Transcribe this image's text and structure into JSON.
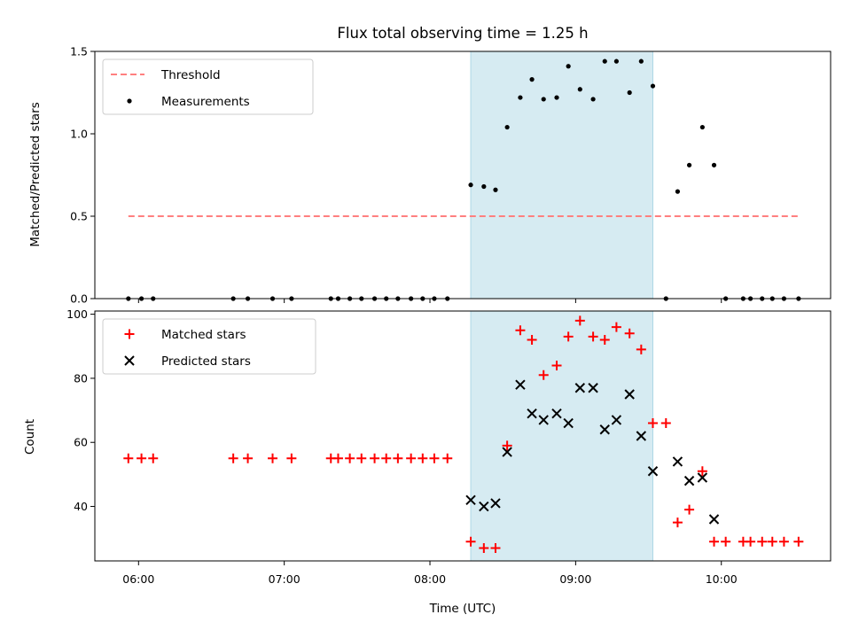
{
  "chart_data": [
    {
      "type": "scatter",
      "title": "Flux total observing time = 1.25 h",
      "ylabel": "Matched/Predicted stars",
      "xlim": [
        5.7,
        10.75
      ],
      "ylim": [
        0,
        1.5
      ],
      "yticks": [
        0,
        0.5,
        1.0,
        1.5
      ],
      "ytick_labels": [
        "0.0",
        "0.5",
        "1.0",
        "1.5"
      ],
      "xticks": [
        6,
        7,
        8,
        9,
        10
      ],
      "shaded_region": {
        "x": [
          8.28,
          9.53
        ],
        "color": "#add8e6"
      },
      "legend": {
        "position": "upper left",
        "entries": [
          "Threshold",
          "Measurements"
        ]
      },
      "series": [
        {
          "name": "Threshold",
          "kind": "dashed-line",
          "color": "#ff7f7f",
          "x": [
            5.93,
            10.53
          ],
          "y": [
            0.5,
            0.5
          ]
        },
        {
          "name": "Measurements",
          "kind": "dot",
          "color": "#000000",
          "x": [
            5.93,
            6.02,
            6.1,
            6.65,
            6.75,
            6.92,
            7.05,
            7.32,
            7.37,
            7.45,
            7.53,
            7.62,
            7.7,
            7.78,
            7.87,
            7.95,
            8.03,
            8.12,
            8.28,
            8.37,
            8.45,
            8.53,
            8.62,
            8.7,
            8.78,
            8.87,
            8.95,
            9.03,
            9.12,
            9.2,
            9.28,
            9.37,
            9.45,
            9.53,
            9.62,
            9.7,
            9.78,
            9.87,
            9.95,
            10.03,
            10.15,
            10.2,
            10.28,
            10.35,
            10.43,
            10.53
          ],
          "y": [
            0,
            0,
            0,
            0,
            0,
            0,
            0,
            0,
            0,
            0,
            0,
            0,
            0,
            0,
            0,
            0,
            0,
            0,
            0.69,
            0.68,
            0.66,
            1.04,
            1.22,
            1.33,
            1.21,
            1.22,
            1.41,
            1.27,
            1.21,
            1.44,
            1.44,
            1.25,
            1.44,
            1.29,
            0,
            0.65,
            0.81,
            1.04,
            0.81,
            0,
            0,
            0,
            0,
            0,
            0,
            0
          ]
        }
      ]
    },
    {
      "type": "scatter",
      "xlabel": "Time (UTC)",
      "ylabel": "Count",
      "xlim": [
        5.7,
        10.75
      ],
      "ylim": [
        23,
        101
      ],
      "yticks": [
        40,
        60,
        80,
        100
      ],
      "xticks": [
        6,
        7,
        8,
        9,
        10
      ],
      "xtick_labels": [
        "06:00",
        "07:00",
        "08:00",
        "09:00",
        "10:00"
      ],
      "shaded_region": {
        "x": [
          8.28,
          9.53
        ],
        "color": "#add8e6"
      },
      "legend": {
        "position": "upper left",
        "entries": [
          "Matched stars",
          "Predicted stars"
        ]
      },
      "series": [
        {
          "name": "Matched stars",
          "marker": "plus",
          "color": "#ff0000",
          "x": [
            5.93,
            6.02,
            6.1,
            6.65,
            6.75,
            6.92,
            7.05,
            7.32,
            7.37,
            7.45,
            7.53,
            7.62,
            7.7,
            7.78,
            7.87,
            7.95,
            8.03,
            8.12,
            8.28,
            8.37,
            8.45,
            8.53,
            8.62,
            8.7,
            8.78,
            8.87,
            8.95,
            9.03,
            9.12,
            9.2,
            9.28,
            9.37,
            9.45,
            9.53,
            9.62,
            9.7,
            9.78,
            9.87,
            9.95,
            10.03,
            10.15,
            10.2,
            10.28,
            10.35,
            10.43,
            10.53
          ],
          "y": [
            55,
            55,
            55,
            55,
            55,
            55,
            55,
            55,
            55,
            55,
            55,
            55,
            55,
            55,
            55,
            55,
            55,
            55,
            29,
            27,
            27,
            59,
            95,
            92,
            81,
            84,
            93,
            98,
            93,
            92,
            96,
            94,
            89,
            66,
            66,
            35,
            39,
            51,
            29,
            29,
            29,
            29,
            29,
            29,
            29,
            29
          ]
        },
        {
          "name": "Predicted stars",
          "marker": "x",
          "color": "#000000",
          "x": [
            8.28,
            8.37,
            8.45,
            8.53,
            8.62,
            8.7,
            8.78,
            8.87,
            8.95,
            9.03,
            9.12,
            9.2,
            9.28,
            9.37,
            9.45,
            9.53,
            9.7,
            9.78,
            9.87,
            9.95
          ],
          "y": [
            42,
            40,
            41,
            57,
            78,
            69,
            67,
            69,
            66,
            77,
            77,
            64,
            67,
            75,
            62,
            51,
            54,
            48,
            49,
            36
          ]
        }
      ]
    }
  ]
}
